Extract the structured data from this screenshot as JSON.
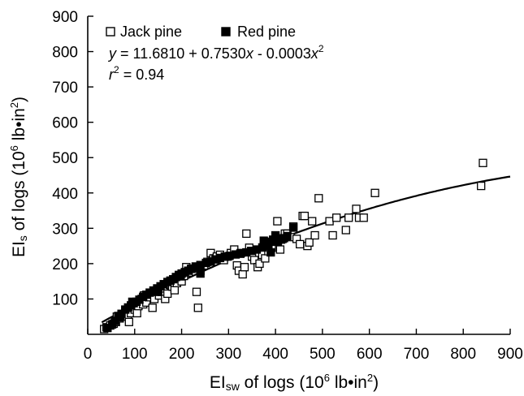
{
  "chart_data": {
    "type": "scatter",
    "x_axis": {
      "label_parts": {
        "pre": "EI",
        "sub": "sw",
        "mid": " of logs (10",
        "sup": "6",
        "post": " lb•in",
        "sup2": "2",
        "end": ")"
      },
      "range": [
        0,
        900
      ],
      "ticks": [
        0,
        100,
        200,
        300,
        400,
        500,
        600,
        700,
        800,
        900
      ],
      "tick_labels": [
        "0",
        "100",
        "200",
        "300",
        "400",
        "500",
        "600",
        "700",
        "800",
        "900"
      ]
    },
    "y_axis": {
      "label_parts": {
        "pre": "EI",
        "sub": "s",
        "mid": " of logs (10",
        "sup": "6",
        "post": " lb•in",
        "sup2": "2",
        "end": ")"
      },
      "range": [
        0,
        900
      ],
      "ticks": [
        100,
        200,
        300,
        400,
        500,
        600,
        700,
        800,
        900
      ],
      "tick_labels": [
        "100",
        "200",
        "300",
        "400",
        "500",
        "600",
        "700",
        "800",
        "900"
      ]
    },
    "legend": {
      "placement": "top-left",
      "entries": [
        {
          "label": "Jack pine",
          "marker": "open-square"
        },
        {
          "label": "Red pine",
          "marker": "filled-square"
        }
      ]
    },
    "annotations": {
      "equation": {
        "y": "y",
        "eq": " = 11.6810 + 0.7530",
        "x1": "x",
        "mid": " - 0.0003",
        "x2": "x",
        "exp": "2"
      },
      "r2": {
        "r": "r",
        "exp": "2",
        "val": " = 0.94"
      }
    },
    "fit_curve": {
      "coefficients": [
        11.681,
        0.753,
        -0.0003
      ],
      "x_range": [
        30,
        900
      ]
    },
    "series": [
      {
        "name": "Jack pine",
        "marker": "open-square",
        "points": [
          [
            35,
            15
          ],
          [
            40,
            20
          ],
          [
            48,
            25
          ],
          [
            55,
            30
          ],
          [
            60,
            35
          ],
          [
            62,
            50
          ],
          [
            68,
            45
          ],
          [
            72,
            55
          ],
          [
            78,
            55
          ],
          [
            80,
            65
          ],
          [
            85,
            50
          ],
          [
            88,
            35
          ],
          [
            92,
            60
          ],
          [
            95,
            75
          ],
          [
            100,
            70
          ],
          [
            102,
            85
          ],
          [
            105,
            60
          ],
          [
            108,
            80
          ],
          [
            112,
            95
          ],
          [
            115,
            100
          ],
          [
            118,
            85
          ],
          [
            120,
            110
          ],
          [
            125,
            90
          ],
          [
            130,
            105
          ],
          [
            135,
            115
          ],
          [
            138,
            75
          ],
          [
            142,
            100
          ],
          [
            148,
            125
          ],
          [
            152,
            110
          ],
          [
            158,
            120
          ],
          [
            162,
            130
          ],
          [
            165,
            100
          ],
          [
            170,
            115
          ],
          [
            175,
            140
          ],
          [
            180,
            135
          ],
          [
            185,
            125
          ],
          [
            190,
            145
          ],
          [
            195,
            160
          ],
          [
            200,
            150
          ],
          [
            205,
            165
          ],
          [
            210,
            190
          ],
          [
            215,
            175
          ],
          [
            220,
            185
          ],
          [
            232,
            120
          ],
          [
            235,
            75
          ],
          [
            240,
            180
          ],
          [
            248,
            195
          ],
          [
            255,
            205
          ],
          [
            262,
            230
          ],
          [
            268,
            215
          ],
          [
            275,
            220
          ],
          [
            282,
            225
          ],
          [
            290,
            210
          ],
          [
            298,
            220
          ],
          [
            305,
            230
          ],
          [
            312,
            240
          ],
          [
            318,
            195
          ],
          [
            322,
            180
          ],
          [
            326,
            230
          ],
          [
            330,
            170
          ],
          [
            334,
            190
          ],
          [
            338,
            285
          ],
          [
            344,
            245
          ],
          [
            350,
            220
          ],
          [
            355,
            210
          ],
          [
            362,
            190
          ],
          [
            366,
            200
          ],
          [
            372,
            225
          ],
          [
            378,
            215
          ],
          [
            385,
            235
          ],
          [
            392,
            245
          ],
          [
            398,
            265
          ],
          [
            404,
            320
          ],
          [
            410,
            240
          ],
          [
            415,
            270
          ],
          [
            420,
            285
          ],
          [
            425,
            285
          ],
          [
            432,
            275
          ],
          [
            438,
            305
          ],
          [
            445,
            270
          ],
          [
            452,
            255
          ],
          [
            458,
            335
          ],
          [
            462,
            335
          ],
          [
            468,
            250
          ],
          [
            472,
            260
          ],
          [
            478,
            320
          ],
          [
            484,
            280
          ],
          [
            492,
            385
          ],
          [
            515,
            320
          ],
          [
            522,
            280
          ],
          [
            530,
            330
          ],
          [
            550,
            295
          ],
          [
            556,
            330
          ],
          [
            572,
            355
          ],
          [
            578,
            330
          ],
          [
            588,
            330
          ],
          [
            612,
            400
          ],
          [
            838,
            420
          ],
          [
            842,
            485
          ]
        ]
      },
      {
        "name": "Red pine",
        "marker": "filled-square",
        "points": [
          [
            42,
            18
          ],
          [
            52,
            28
          ],
          [
            58,
            38
          ],
          [
            65,
            52
          ],
          [
            72,
            58
          ],
          [
            80,
            70
          ],
          [
            86,
            76
          ],
          [
            92,
            82
          ],
          [
            98,
            88
          ],
          [
            104,
            92
          ],
          [
            110,
            98
          ],
          [
            118,
            106
          ],
          [
            125,
            112
          ],
          [
            132,
            118
          ],
          [
            140,
            124
          ],
          [
            148,
            130
          ],
          [
            155,
            136
          ],
          [
            162,
            142
          ],
          [
            170,
            148
          ],
          [
            176,
            152
          ],
          [
            182,
            156
          ],
          [
            188,
            162
          ],
          [
            194,
            168
          ],
          [
            200,
            172
          ],
          [
            207,
            176
          ],
          [
            214,
            180
          ],
          [
            222,
            186
          ],
          [
            230,
            192
          ],
          [
            240,
            196
          ],
          [
            252,
            202
          ],
          [
            262,
            206
          ],
          [
            272,
            212
          ],
          [
            282,
            216
          ],
          [
            292,
            220
          ],
          [
            302,
            222
          ],
          [
            315,
            226
          ],
          [
            325,
            228
          ],
          [
            338,
            232
          ],
          [
            348,
            236
          ],
          [
            360,
            240
          ],
          [
            372,
            246
          ],
          [
            380,
            250
          ],
          [
            385,
            255
          ],
          [
            390,
            262
          ],
          [
            395,
            268
          ],
          [
            400,
            280
          ],
          [
            405,
            262
          ],
          [
            412,
            268
          ],
          [
            418,
            272
          ],
          [
            425,
            278
          ],
          [
            438,
            302
          ],
          [
            390,
            232
          ],
          [
            375,
            265
          ],
          [
            240,
            172
          ],
          [
            198,
            164
          ],
          [
            150,
            120
          ],
          [
            95,
            92
          ],
          [
            68,
            48
          ]
        ]
      }
    ]
  }
}
